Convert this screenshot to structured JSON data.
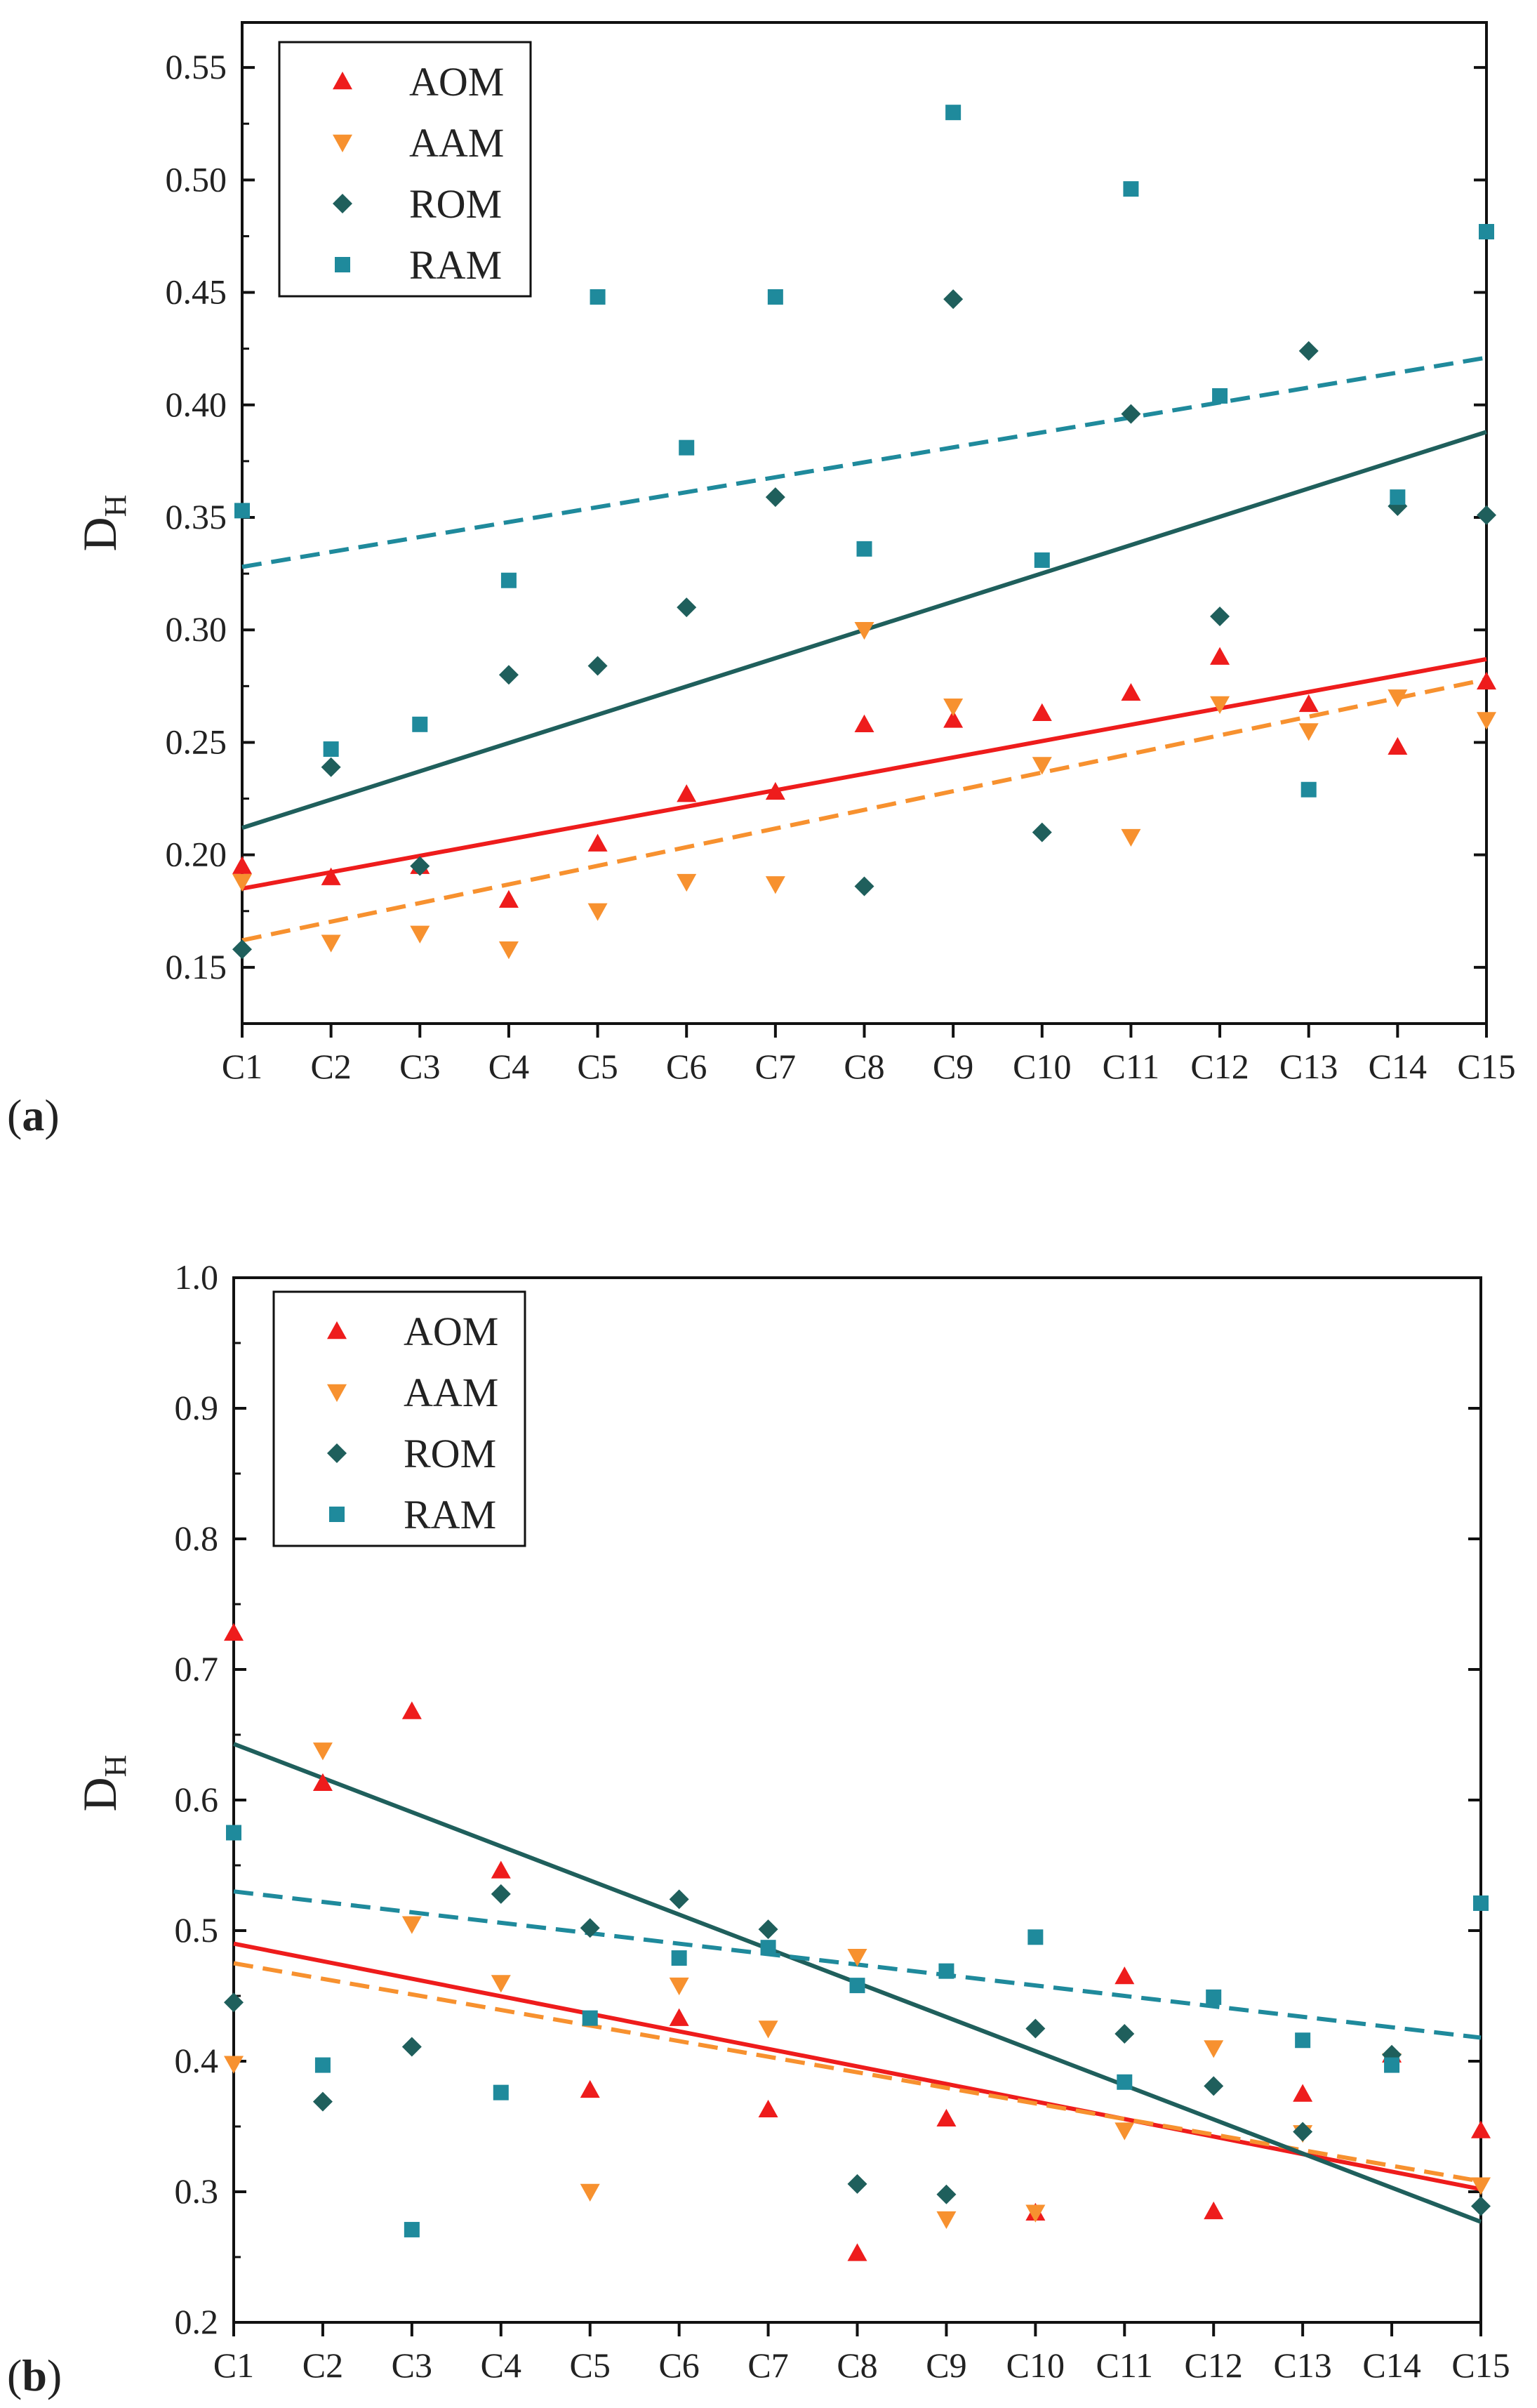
{
  "colors": {
    "AOM": "#ee1c1c",
    "AAM": "#f7912f",
    "ROM": "#1f5f5c",
    "RAM": "#1f8a9c",
    "axis": "#111111"
  },
  "chart_data": [
    {
      "type": "scatter",
      "panel_label": "a",
      "ylabel": "D",
      "ylabel_sub": "H",
      "xlabel": "",
      "categories": [
        "C1",
        "C2",
        "C3",
        "C4",
        "C5",
        "C6",
        "C7",
        "C8",
        "C9",
        "C10",
        "C11",
        "C12",
        "C13",
        "C14",
        "C15"
      ],
      "ylim": [
        0.125,
        0.57
      ],
      "yticks": [
        0.15,
        0.2,
        0.25,
        0.3,
        0.35,
        0.4,
        0.45,
        0.5,
        0.55
      ],
      "ytick_labels": [
        "0.15",
        "0.20",
        "0.25",
        "0.30",
        "0.35",
        "0.40",
        "0.45",
        "0.50",
        "0.55"
      ],
      "legend_position": "top-left",
      "series": [
        {
          "name": "AOM",
          "marker": "triangle-up",
          "values": [
            0.195,
            0.19,
            0.195,
            0.18,
            0.205,
            0.227,
            0.228,
            0.258,
            0.26,
            0.263,
            0.272,
            0.288,
            0.267,
            0.248,
            0.277
          ],
          "fit": {
            "start": 0.185,
            "end": 0.287,
            "style": "solid"
          }
        },
        {
          "name": "AAM",
          "marker": "triangle-down",
          "values": [
            0.188,
            0.161,
            0.165,
            0.158,
            0.175,
            0.188,
            0.187,
            0.3,
            0.266,
            0.24,
            0.208,
            0.267,
            0.255,
            0.27,
            0.26
          ],
          "fit": {
            "start": 0.162,
            "end": 0.278,
            "style": "dashed"
          }
        },
        {
          "name": "ROM",
          "marker": "diamond",
          "values": [
            0.158,
            0.239,
            0.195,
            0.28,
            0.284,
            0.31,
            0.359,
            0.186,
            0.447,
            0.21,
            0.396,
            0.306,
            0.424,
            0.355,
            0.351
          ],
          "fit": {
            "start": 0.212,
            "end": 0.388,
            "style": "solid"
          }
        },
        {
          "name": "RAM",
          "marker": "square",
          "values": [
            0.353,
            0.247,
            0.258,
            0.322,
            0.448,
            0.381,
            0.448,
            0.336,
            0.53,
            0.331,
            0.496,
            0.404,
            0.229,
            0.359,
            0.477
          ],
          "fit": {
            "start": 0.328,
            "end": 0.421,
            "style": "dashed"
          }
        }
      ]
    },
    {
      "type": "scatter",
      "panel_label": "b",
      "ylabel": "D",
      "ylabel_sub": "H",
      "xlabel": "",
      "categories": [
        "C1",
        "C2",
        "C3",
        "C4",
        "C5",
        "C6",
        "C7",
        "C8",
        "C9",
        "C10",
        "C11",
        "C12",
        "C13",
        "C14",
        "C15"
      ],
      "ylim": [
        0.2,
        1.0
      ],
      "yticks": [
        0.2,
        0.3,
        0.4,
        0.5,
        0.6,
        0.7,
        0.8,
        0.9,
        1.0
      ],
      "ytick_labels": [
        "0.2",
        "0.3",
        "0.4",
        "0.5",
        "0.6",
        "0.7",
        "0.8",
        "0.9",
        "1.0"
      ],
      "legend_position": "top-left",
      "series": [
        {
          "name": "AOM",
          "marker": "triangle-up",
          "values": [
            0.728,
            0.613,
            0.668,
            0.546,
            0.378,
            0.433,
            0.363,
            0.253,
            0.356,
            0.284,
            0.465,
            0.285,
            0.375,
            0.405,
            0.347
          ],
          "fit": {
            "start": 0.49,
            "end": 0.302,
            "style": "solid"
          }
        },
        {
          "name": "AAM",
          "marker": "triangle-down",
          "values": [
            0.398,
            0.638,
            0.505,
            0.46,
            0.3,
            0.458,
            0.425,
            0.48,
            0.279,
            0.284,
            0.347,
            0.41,
            0.345,
            0.4,
            0.305
          ],
          "fit": {
            "start": 0.475,
            "end": 0.308,
            "style": "dashed"
          }
        },
        {
          "name": "ROM",
          "marker": "diamond",
          "values": [
            0.445,
            0.369,
            0.411,
            0.528,
            0.502,
            0.524,
            0.501,
            0.306,
            0.298,
            0.425,
            0.421,
            0.381,
            0.346,
            0.405,
            0.289
          ],
          "fit": {
            "start": 0.643,
            "end": 0.277,
            "style": "solid"
          }
        },
        {
          "name": "RAM",
          "marker": "square",
          "values": [
            0.575,
            0.397,
            0.271,
            0.376,
            0.433,
            0.479,
            0.487,
            0.458,
            0.469,
            0.495,
            0.384,
            0.449,
            0.416,
            0.397,
            0.521
          ],
          "fit": {
            "start": 0.53,
            "end": 0.418,
            "style": "dashed"
          }
        }
      ]
    }
  ]
}
